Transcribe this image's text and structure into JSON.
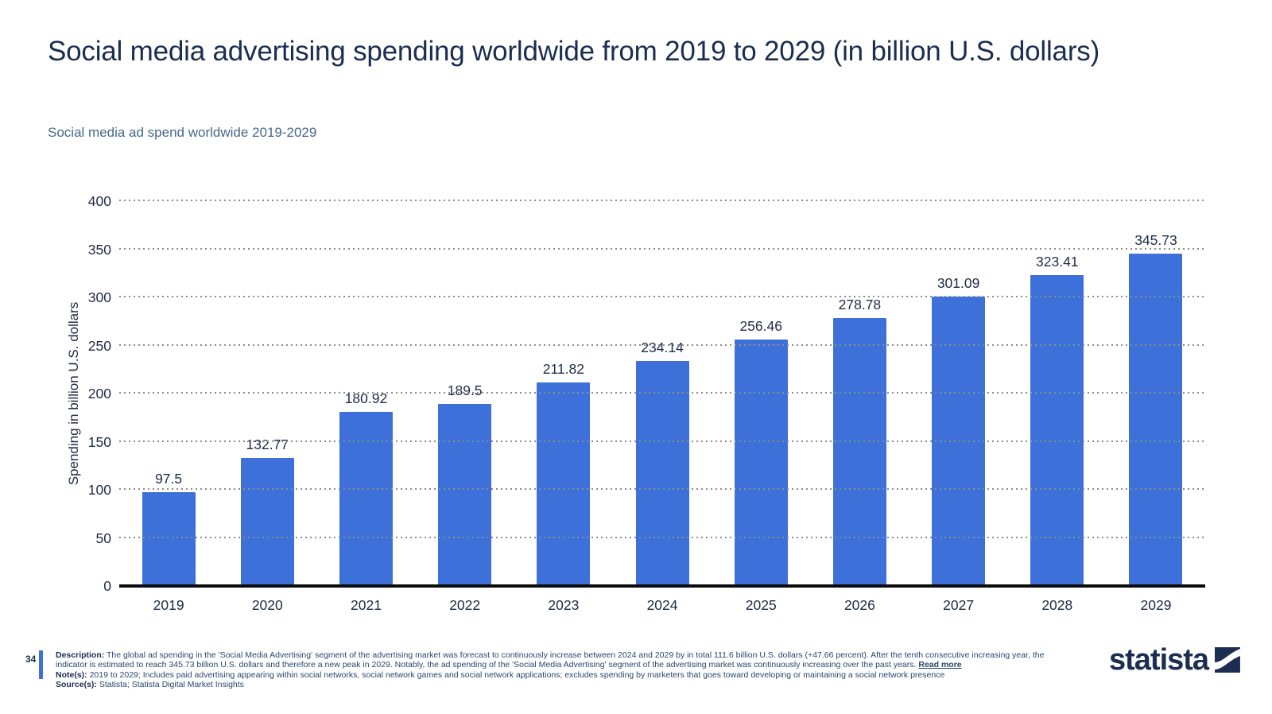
{
  "page": {
    "title": "Social media advertising spending worldwide from 2019 to 2029 (in billion U.S. dollars)",
    "subtitle": "Social media ad spend worldwide 2019-2029",
    "page_number": "34"
  },
  "chart_data": {
    "type": "bar",
    "title": "Social media advertising spending worldwide from 2019 to 2029 (in billion U.S. dollars)",
    "categories": [
      "2019",
      "2020",
      "2021",
      "2022",
      "2023",
      "2024",
      "2025",
      "2026",
      "2027",
      "2028",
      "2029"
    ],
    "values": [
      97.5,
      132.77,
      180.92,
      189.5,
      211.82,
      234.14,
      256.46,
      278.78,
      301.09,
      323.41,
      345.73
    ],
    "xlabel": "",
    "ylabel": "Spending in billion U.S. dollars",
    "ylim": [
      0,
      400
    ],
    "yticks": [
      0,
      50,
      100,
      150,
      200,
      250,
      300,
      350,
      400
    ],
    "grid": "horizontal dotted",
    "legend": "none",
    "bar_color": "#3E70D9"
  },
  "footer": {
    "description_label": "Description:",
    "description_text": "The global ad spending in the 'Social Media Advertising' segment of the advertising market was forecast to continuously increase between 2024 and 2029 by in total 111.6 billion U.S. dollars (+47.66 percent). After the tenth consecutive increasing year, the indicator is estimated to reach 345.73 billion U.S. dollars and therefore a new peak in 2029. Notably, the ad spending of the 'Social Media Advertising' segment of the advertising market was continuously increasing over the past years.",
    "read_more_label": "Read more",
    "notes_label": "Note(s):",
    "notes_text": "2019 to 2029; Includes paid advertising appearing within social networks, social network games and social network applications; excludes spending by marketers that goes toward developing or maintaining a social network presence",
    "sources_label": "Source(s):",
    "sources_text": "Statista; Statista Digital Market Insights",
    "brand": "statista"
  },
  "colors": {
    "bar": "#3E70D9",
    "accent": "#3E70D9",
    "title_text": "#1B2D50",
    "subtitle_text": "#46688C",
    "axis": "#0B0B0B",
    "grid": "#8C8C8C"
  }
}
